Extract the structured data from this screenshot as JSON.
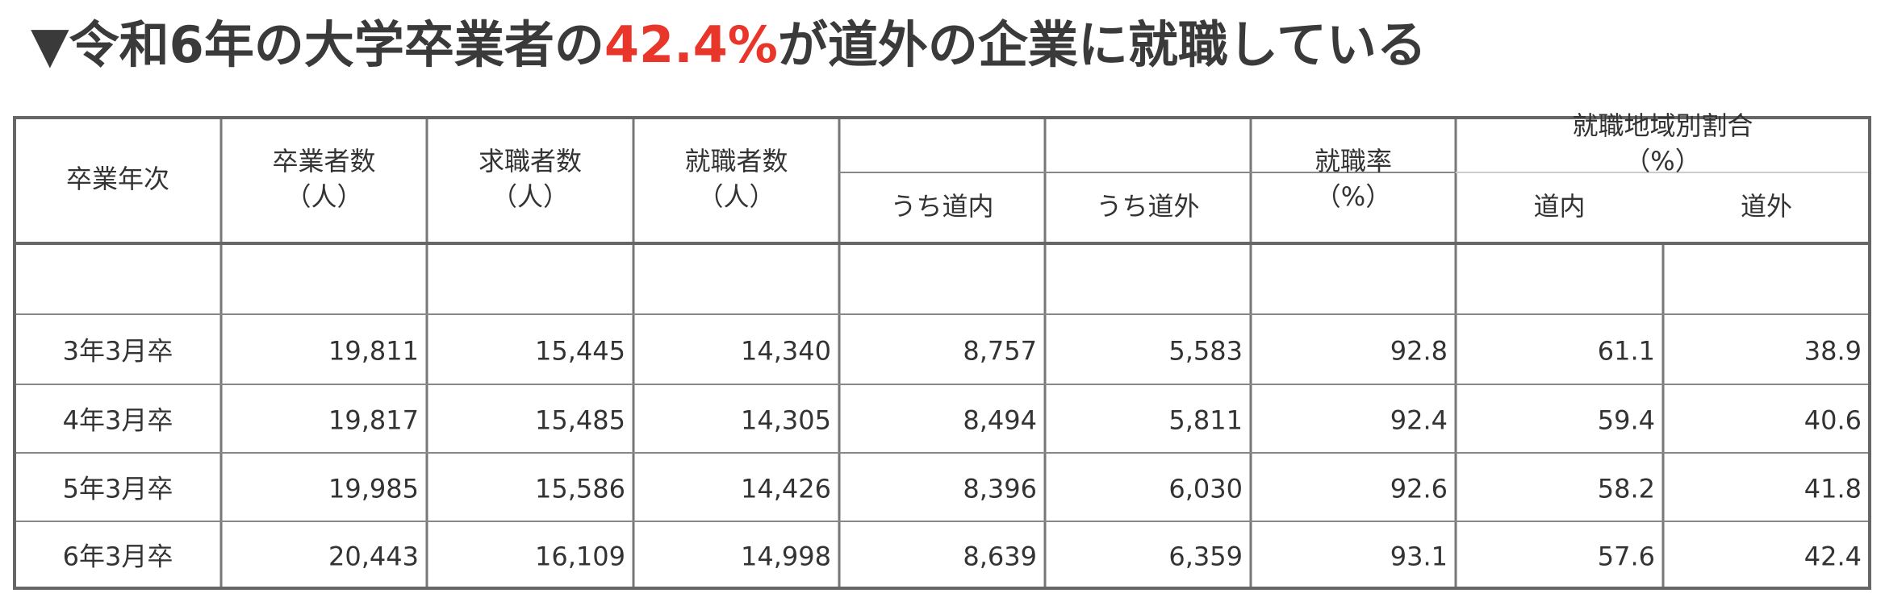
{
  "header": {
    "title": {
      "prefix": "▼令和6年の大学卒業者の",
      "highlight": "42.4%",
      "suffix": "が道外の企業に就職している"
    }
  },
  "table": {
    "headers": {
      "year": "卒業年次",
      "graduates": {
        "label": "卒業者数",
        "unit": "（人）"
      },
      "seekers": {
        "label": "求職者数",
        "unit": "（人）"
      },
      "employed": {
        "label": "就職者数",
        "unit": "（人）"
      },
      "employed_in": "うち道内",
      "employed_out": "うち道外",
      "rate": {
        "label": "就職率",
        "unit": "（%）"
      },
      "region": {
        "label": "就職地域別割合",
        "unit": "（%）"
      },
      "region_in": "道内",
      "region_out": "道外"
    },
    "rows": [
      [
        "3年3月卒",
        "19,811",
        "15,445",
        "14,340",
        "8,757",
        "5,583",
        "92.8",
        "61.1",
        "38.9"
      ],
      [
        "4年3月卒",
        "19,817",
        "15,485",
        "14,305",
        "8,494",
        "5,811",
        "92.4",
        "59.4",
        "40.6"
      ],
      [
        "5年3月卒",
        "19,985",
        "15,586",
        "14,426",
        "8,396",
        "6,030",
        "92.6",
        "58.2",
        "41.8"
      ],
      [
        "6年3月卒",
        "20,443",
        "16,109",
        "14,998",
        "8,639",
        "6,359",
        "93.1",
        "57.6",
        "42.4"
      ]
    ]
  }
}
